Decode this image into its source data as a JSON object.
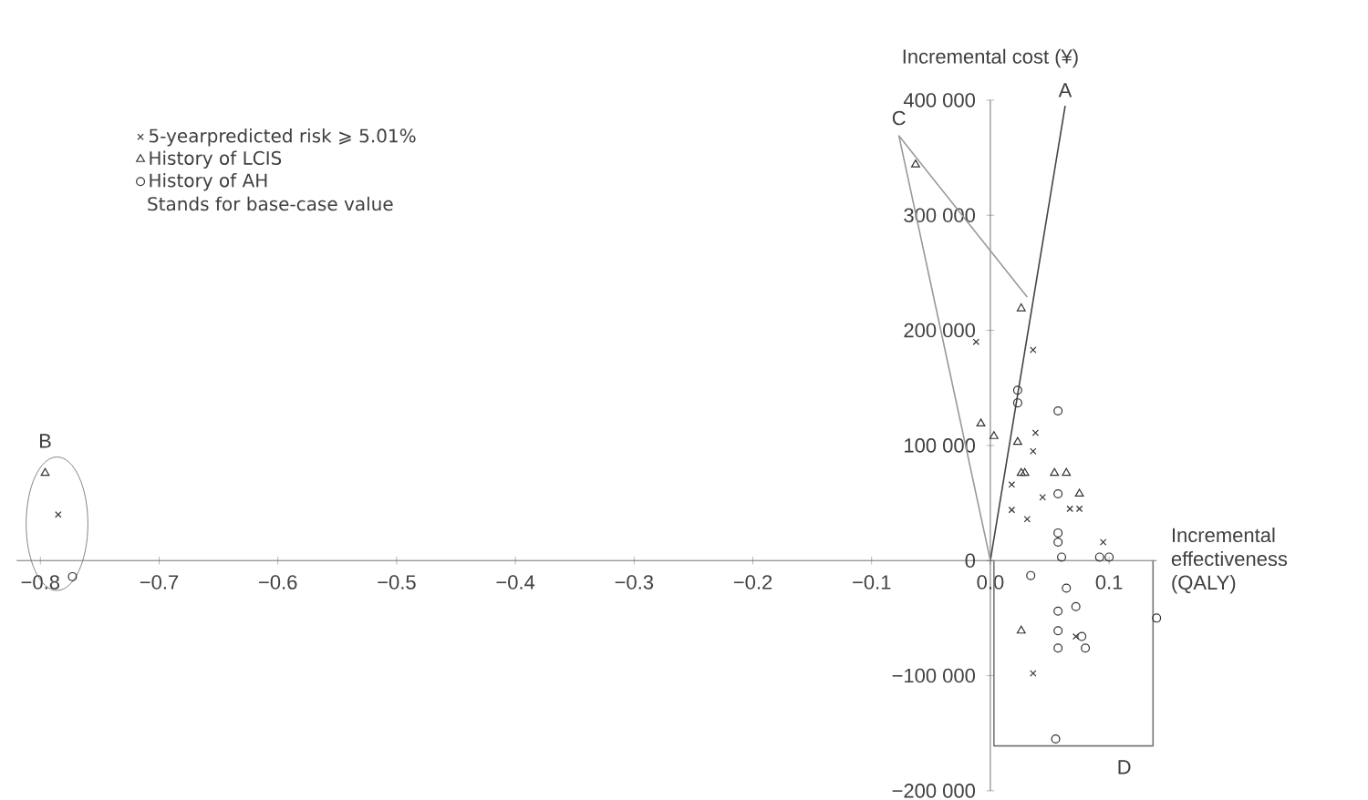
{
  "chart_data": {
    "type": "scatter",
    "xlabel": "Incremental effectiveness (QALY)",
    "ylabel": "Incremental cost (¥)",
    "xlim": [
      -0.82,
      0.14
    ],
    "ylim": [
      -200000,
      400000
    ],
    "xticks": [
      {
        "value": -0.8,
        "label": "−0.8"
      },
      {
        "value": -0.7,
        "label": "−0.7"
      },
      {
        "value": -0.6,
        "label": "−0.6"
      },
      {
        "value": -0.5,
        "label": "−0.5"
      },
      {
        "value": -0.4,
        "label": "−0.4"
      },
      {
        "value": -0.3,
        "label": "−0.3"
      },
      {
        "value": -0.2,
        "label": "−0.2"
      },
      {
        "value": -0.1,
        "label": "−0.1"
      },
      {
        "value": 0,
        "label": "0.0"
      },
      {
        "value": 0.1,
        "label": "0.1"
      }
    ],
    "yticks": [
      {
        "value": -200000,
        "label": "−200 000"
      },
      {
        "value": -100000,
        "label": "−100 000"
      },
      0,
      {
        "value": 100000,
        "label": "100 000"
      },
      {
        "value": 200000,
        "label": "200 000"
      },
      {
        "value": 300000,
        "label": "300 000"
      },
      {
        "value": 400000,
        "label": "400 000"
      }
    ],
    "legend": "top left",
    "grid": false,
    "series": [
      {
        "name": "5-yearpredicted risk ⩾ 5.01%",
        "color": "#333333",
        "marker": "cross",
        "x": [
          -0.012,
          0.036,
          0.038,
          0.036,
          0.018,
          0.031,
          0.044,
          0.067,
          0.075,
          0.095,
          0.072,
          0.036,
          0.018,
          -0.785
        ],
        "values": [
          190000,
          183000,
          111000,
          95000,
          66000,
          36000,
          55000,
          45000,
          45000,
          16000,
          -66000,
          -98000,
          44000,
          40000
        ]
      },
      {
        "name": "History of LCIS",
        "color": "#333333",
        "marker": "triangle",
        "x": [
          -0.063,
          0.026,
          -0.008,
          0.003,
          0.023,
          0.054,
          0.064,
          0.075,
          0.026,
          0.029,
          0.026,
          -0.796
        ],
        "values": [
          344000,
          219000,
          119000,
          108000,
          103000,
          76000,
          76000,
          58000,
          76000,
          76000,
          -61000,
          76000
        ]
      },
      {
        "name": "History of AH",
        "color": "#333333",
        "marker": "circle",
        "x": [
          0.057,
          0.023,
          0.023,
          0.057,
          0.057,
          0.057,
          0.034,
          0.064,
          0.072,
          0.057,
          0.057,
          0.057,
          0.077,
          0.08,
          0.092,
          0.1,
          0.14,
          0.055,
          0.06,
          -0.773
        ],
        "values": [
          130000,
          137000,
          148000,
          58000,
          24000,
          16000,
          -13000,
          -24000,
          -40000,
          -44000,
          -61000,
          -76000,
          -66000,
          -76000,
          3000,
          3000,
          -50000,
          -155000,
          3000,
          -14000
        ]
      },
      {
        "type": "line",
        "color": "#444444",
        "x": [
          0,
          0.063
        ],
        "values": [
          0,
          395000
        ]
      },
      {
        "type": "line",
        "color": "#999999",
        "x": [
          0.031,
          -0.077,
          0
        ],
        "values": [
          229000,
          369000,
          0
        ]
      },
      {
        "type": "line",
        "color": "#777777",
        "x": [
          0.003,
          0.003,
          0.137,
          0.137
        ],
        "values": [
          0,
          -161000,
          -161000,
          0
        ]
      }
    ],
    "annotations": [
      {
        "text": "A",
        "x": 0.063,
        "y": 395000
      },
      {
        "text": "C",
        "x": -0.077,
        "y": 369000
      },
      {
        "text": "B",
        "x": -0.796,
        "y": 76000
      },
      {
        "text": "D",
        "x": 0.137,
        "y": -161000
      },
      "Stands for base-case value"
    ]
  }
}
